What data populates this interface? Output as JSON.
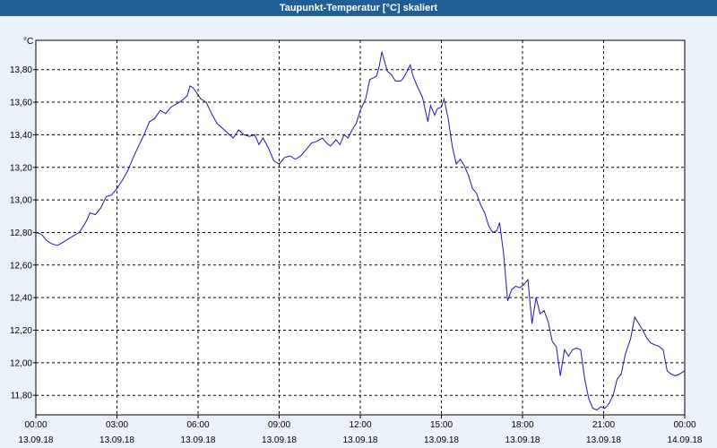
{
  "window": {
    "title": "Taupunkt-Temperatur [°C] skaliert"
  },
  "chart_data": {
    "type": "line",
    "title": "Taupunkt-Temperatur [°C] skaliert",
    "ylabel": "°C",
    "xlabel": "",
    "ylim": [
      11.68,
      13.98
    ],
    "xlim": [
      0,
      24
    ],
    "grid": true,
    "yticks": [
      {
        "value": 11.8,
        "label": "11,80"
      },
      {
        "value": 12.0,
        "label": "12,00"
      },
      {
        "value": 12.2,
        "label": "12,20"
      },
      {
        "value": 12.4,
        "label": "12,40"
      },
      {
        "value": 12.6,
        "label": "12,60"
      },
      {
        "value": 12.8,
        "label": "12,80"
      },
      {
        "value": 13.0,
        "label": "13,00"
      },
      {
        "value": 13.2,
        "label": "13,20"
      },
      {
        "value": 13.4,
        "label": "13,40"
      },
      {
        "value": 13.6,
        "label": "13,60"
      },
      {
        "value": 13.8,
        "label": "13,80"
      }
    ],
    "xticks": [
      {
        "hour": 0,
        "time": "00:00",
        "date": "13.09.18"
      },
      {
        "hour": 3,
        "time": "03:00",
        "date": "13.09.18"
      },
      {
        "hour": 6,
        "time": "06:00",
        "date": "13.09.18"
      },
      {
        "hour": 9,
        "time": "09:00",
        "date": "13.09.18"
      },
      {
        "hour": 12,
        "time": "12:00",
        "date": "13.09.18"
      },
      {
        "hour": 15,
        "time": "15:00",
        "date": "13.09.18"
      },
      {
        "hour": 18,
        "time": "18:00",
        "date": "13.09.18"
      },
      {
        "hour": 21,
        "time": "21:00",
        "date": "13.09.18"
      },
      {
        "hour": 24,
        "time": "00:00",
        "date": "14.09.18"
      }
    ],
    "series": [
      {
        "color": "#1a1aa6",
        "points": [
          [
            0.0,
            12.8
          ],
          [
            0.2,
            12.79
          ],
          [
            0.4,
            12.75
          ],
          [
            0.6,
            12.73
          ],
          [
            0.8,
            12.72
          ],
          [
            1.0,
            12.74
          ],
          [
            1.2,
            12.76
          ],
          [
            1.4,
            12.78
          ],
          [
            1.6,
            12.8
          ],
          [
            1.8,
            12.85
          ],
          [
            1.9,
            12.88
          ],
          [
            2.0,
            12.92
          ],
          [
            2.2,
            12.91
          ],
          [
            2.4,
            12.95
          ],
          [
            2.6,
            13.02
          ],
          [
            2.8,
            13.03
          ],
          [
            3.0,
            13.07
          ],
          [
            3.2,
            13.12
          ],
          [
            3.4,
            13.18
          ],
          [
            3.6,
            13.26
          ],
          [
            3.8,
            13.33
          ],
          [
            4.0,
            13.4
          ],
          [
            4.2,
            13.48
          ],
          [
            4.4,
            13.5
          ],
          [
            4.6,
            13.55
          ],
          [
            4.8,
            13.53
          ],
          [
            5.0,
            13.57
          ],
          [
            5.2,
            13.59
          ],
          [
            5.4,
            13.61
          ],
          [
            5.6,
            13.64
          ],
          [
            5.7,
            13.7
          ],
          [
            5.8,
            13.69
          ],
          [
            5.9,
            13.67
          ],
          [
            6.1,
            13.62
          ],
          [
            6.3,
            13.6
          ],
          [
            6.5,
            13.53
          ],
          [
            6.7,
            13.47
          ],
          [
            6.9,
            13.44
          ],
          [
            7.1,
            13.41
          ],
          [
            7.3,
            13.38
          ],
          [
            7.5,
            13.43
          ],
          [
            7.7,
            13.4
          ],
          [
            7.9,
            13.39
          ],
          [
            8.1,
            13.4
          ],
          [
            8.25,
            13.34
          ],
          [
            8.4,
            13.38
          ],
          [
            8.6,
            13.32
          ],
          [
            8.8,
            13.24
          ],
          [
            9.0,
            13.22
          ],
          [
            9.2,
            13.26
          ],
          [
            9.4,
            13.27
          ],
          [
            9.6,
            13.25
          ],
          [
            9.8,
            13.27
          ],
          [
            10.0,
            13.31
          ],
          [
            10.2,
            13.35
          ],
          [
            10.4,
            13.36
          ],
          [
            10.6,
            13.38
          ],
          [
            10.75,
            13.35
          ],
          [
            10.9,
            13.33
          ],
          [
            11.1,
            13.37
          ],
          [
            11.25,
            13.34
          ],
          [
            11.4,
            13.4
          ],
          [
            11.55,
            13.38
          ],
          [
            11.7,
            13.43
          ],
          [
            11.85,
            13.47
          ],
          [
            12.0,
            13.55
          ],
          [
            12.2,
            13.62
          ],
          [
            12.35,
            13.74
          ],
          [
            12.5,
            13.75
          ],
          [
            12.6,
            13.76
          ],
          [
            12.7,
            13.82
          ],
          [
            12.8,
            13.91
          ],
          [
            12.9,
            13.85
          ],
          [
            13.0,
            13.79
          ],
          [
            13.15,
            13.77
          ],
          [
            13.3,
            13.73
          ],
          [
            13.5,
            13.73
          ],
          [
            13.6,
            13.75
          ],
          [
            13.7,
            13.78
          ],
          [
            13.85,
            13.83
          ],
          [
            13.95,
            13.76
          ],
          [
            14.1,
            13.7
          ],
          [
            14.3,
            13.63
          ],
          [
            14.5,
            13.48
          ],
          [
            14.6,
            13.58
          ],
          [
            14.75,
            13.52
          ],
          [
            14.85,
            13.56
          ],
          [
            15.0,
            13.57
          ],
          [
            15.1,
            13.62
          ],
          [
            15.25,
            13.5
          ],
          [
            15.4,
            13.33
          ],
          [
            15.55,
            13.22
          ],
          [
            15.7,
            13.25
          ],
          [
            15.85,
            13.21
          ],
          [
            16.0,
            13.15
          ],
          [
            16.15,
            13.07
          ],
          [
            16.3,
            13.04
          ],
          [
            16.45,
            12.97
          ],
          [
            16.6,
            12.92
          ],
          [
            16.75,
            12.84
          ],
          [
            16.9,
            12.8
          ],
          [
            17.05,
            12.81
          ],
          [
            17.15,
            12.86
          ],
          [
            17.3,
            12.67
          ],
          [
            17.45,
            12.38
          ],
          [
            17.6,
            12.45
          ],
          [
            17.75,
            12.47
          ],
          [
            17.9,
            12.46
          ],
          [
            18.05,
            12.48
          ],
          [
            18.2,
            12.51
          ],
          [
            18.35,
            12.24
          ],
          [
            18.5,
            12.4
          ],
          [
            18.65,
            12.3
          ],
          [
            18.8,
            12.32
          ],
          [
            18.95,
            12.25
          ],
          [
            19.1,
            12.13
          ],
          [
            19.25,
            12.1
          ],
          [
            19.4,
            11.92
          ],
          [
            19.55,
            12.08
          ],
          [
            19.7,
            12.04
          ],
          [
            19.85,
            12.08
          ],
          [
            20.0,
            12.09
          ],
          [
            20.15,
            12.08
          ],
          [
            20.3,
            11.9
          ],
          [
            20.45,
            11.78
          ],
          [
            20.6,
            11.72
          ],
          [
            20.75,
            11.71
          ],
          [
            20.9,
            11.73
          ],
          [
            21.05,
            11.72
          ],
          [
            21.2,
            11.75
          ],
          [
            21.35,
            11.8
          ],
          [
            21.5,
            11.9
          ],
          [
            21.65,
            11.93
          ],
          [
            21.8,
            12.05
          ],
          [
            22.0,
            12.15
          ],
          [
            22.15,
            12.28
          ],
          [
            22.3,
            12.24
          ],
          [
            22.45,
            12.2
          ],
          [
            22.6,
            12.15
          ],
          [
            22.75,
            12.12
          ],
          [
            22.9,
            12.11
          ],
          [
            23.05,
            12.1
          ],
          [
            23.2,
            12.08
          ],
          [
            23.35,
            11.95
          ],
          [
            23.5,
            11.93
          ],
          [
            23.65,
            11.92
          ],
          [
            23.8,
            11.93
          ],
          [
            24.0,
            11.95
          ]
        ]
      }
    ]
  }
}
